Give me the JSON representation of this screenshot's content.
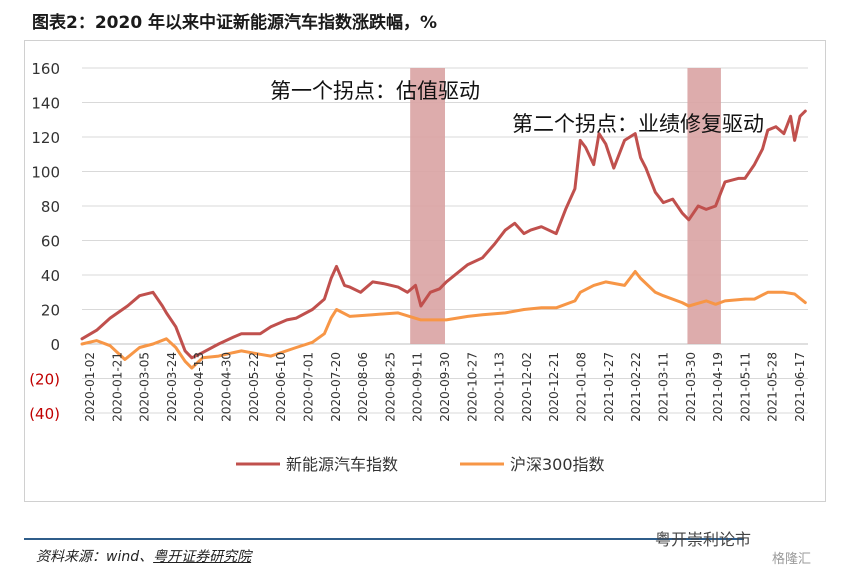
{
  "title": "图表2：2020 年以来中证新能源汽车指数涨跌幅，%",
  "source": {
    "prefix": "资料来源：wind、",
    "org": "粤开证券研究院"
  },
  "watermark": "粤开崇利论市",
  "watermark2": "格隆汇",
  "colors": {
    "nev": "#c0504d",
    "hs300": "#f79646",
    "highlight": "#d9a3a3",
    "grid": "#d9d9d9",
    "negative_tick": "#c00000"
  },
  "chart_data": {
    "type": "line",
    "title": "",
    "xlabel": "",
    "ylabel": "",
    "ylim": [
      -40,
      160
    ],
    "yticks": [
      {
        "value": 160,
        "label": "160"
      },
      {
        "value": 140,
        "label": "140"
      },
      {
        "value": 120,
        "label": "120"
      },
      {
        "value": 100,
        "label": "100"
      },
      {
        "value": 80,
        "label": "80"
      },
      {
        "value": 60,
        "label": "60"
      },
      {
        "value": 40,
        "label": "40"
      },
      {
        "value": 20,
        "label": "20"
      },
      {
        "value": 0,
        "label": "0"
      },
      {
        "value": -20,
        "label": "(20)"
      },
      {
        "value": -40,
        "label": "(40)"
      }
    ],
    "x_tick_labels": [
      "2020-01-02",
      "2020-01-21",
      "2020-03-05",
      "2020-03-24",
      "2020-04-13",
      "2020-04-30",
      "2020-05-22",
      "2020-06-10",
      "2020-07-01",
      "2020-07-20",
      "2020-08-06",
      "2020-08-25",
      "2020-09-11",
      "2020-09-30",
      "2020-10-27",
      "2020-11-13",
      "2020-12-02",
      "2020-12-21",
      "2021-01-08",
      "2021-01-27",
      "2021-02-22",
      "2021-03-11",
      "2021-03-30",
      "2021-04-19",
      "2021-05-11",
      "2021-05-28",
      "2021-06-17"
    ],
    "grid": true,
    "legend_position": "bottom",
    "annotations": [
      {
        "text": "第一个拐点：估值驱动",
        "x_from": "2020-09-03",
        "x_to": "2020-09-29"
      },
      {
        "text": "第二个拐点：业绩修复驱动",
        "x_from": "2021-03-29",
        "x_to": "2021-04-23"
      }
    ],
    "series": [
      {
        "name": "新能源汽车指数",
        "x": [
          "2020-01-02",
          "2020-01-13",
          "2020-01-23",
          "2020-02-05",
          "2020-02-14",
          "2020-02-24",
          "2020-03-02",
          "2020-03-05",
          "2020-03-12",
          "2020-03-19",
          "2020-03-24",
          "2020-04-01",
          "2020-04-13",
          "2020-04-24",
          "2020-04-30",
          "2020-05-14",
          "2020-05-22",
          "2020-06-03",
          "2020-06-10",
          "2020-06-22",
          "2020-07-01",
          "2020-07-06",
          "2020-07-10",
          "2020-07-16",
          "2020-07-20",
          "2020-07-28",
          "2020-08-06",
          "2020-08-14",
          "2020-08-25",
          "2020-09-01",
          "2020-09-07",
          "2020-09-11",
          "2020-09-18",
          "2020-09-25",
          "2020-09-30",
          "2020-10-16",
          "2020-10-27",
          "2020-11-05",
          "2020-11-13",
          "2020-11-20",
          "2020-11-27",
          "2020-12-02",
          "2020-12-10",
          "2020-12-21",
          "2020-12-28",
          "2021-01-04",
          "2021-01-08",
          "2021-01-12",
          "2021-01-18",
          "2021-01-22",
          "2021-01-27",
          "2021-02-02",
          "2021-02-10",
          "2021-02-18",
          "2021-02-22",
          "2021-02-26",
          "2021-03-05",
          "2021-03-11",
          "2021-03-18",
          "2021-03-25",
          "2021-03-30",
          "2021-04-06",
          "2021-04-12",
          "2021-04-19",
          "2021-04-26",
          "2021-05-06",
          "2021-05-11",
          "2021-05-18",
          "2021-05-24",
          "2021-05-28",
          "2021-06-03",
          "2021-06-09",
          "2021-06-14",
          "2021-06-17",
          "2021-06-21",
          "2021-06-25"
        ],
        "values": [
          3,
          8,
          15,
          22,
          28,
          30,
          22,
          18,
          10,
          -4,
          -8,
          -5,
          0,
          4,
          6,
          6,
          10,
          14,
          15,
          20,
          26,
          38,
          45,
          34,
          33,
          30,
          36,
          35,
          33,
          30,
          34,
          22,
          30,
          32,
          36,
          46,
          50,
          58,
          66,
          70,
          64,
          66,
          68,
          64,
          78,
          90,
          118,
          114,
          104,
          122,
          116,
          102,
          118,
          122,
          108,
          102,
          88,
          82,
          84,
          76,
          72,
          80,
          78,
          80,
          94,
          96,
          96,
          104,
          113,
          124,
          126,
          122,
          132,
          118,
          132,
          135
        ]
      },
      {
        "name": "沪深300指数",
        "x": [
          "2020-01-02",
          "2020-01-13",
          "2020-01-23",
          "2020-02-03",
          "2020-02-14",
          "2020-02-24",
          "2020-03-05",
          "2020-03-12",
          "2020-03-19",
          "2020-03-24",
          "2020-04-01",
          "2020-04-13",
          "2020-04-24",
          "2020-04-30",
          "2020-05-14",
          "2020-05-22",
          "2020-06-10",
          "2020-06-22",
          "2020-07-01",
          "2020-07-06",
          "2020-07-10",
          "2020-07-20",
          "2020-08-06",
          "2020-08-25",
          "2020-09-11",
          "2020-09-30",
          "2020-10-16",
          "2020-10-27",
          "2020-11-13",
          "2020-11-27",
          "2020-12-10",
          "2020-12-21",
          "2021-01-04",
          "2021-01-08",
          "2021-01-18",
          "2021-01-27",
          "2021-02-10",
          "2021-02-18",
          "2021-02-22",
          "2021-03-05",
          "2021-03-11",
          "2021-03-25",
          "2021-03-30",
          "2021-04-12",
          "2021-04-19",
          "2021-04-26",
          "2021-05-11",
          "2021-05-18",
          "2021-05-28",
          "2021-06-09",
          "2021-06-17",
          "2021-06-25"
        ],
        "values": [
          0,
          2,
          -1,
          -9,
          -2,
          0,
          3,
          -2,
          -10,
          -14,
          -8,
          -7,
          -5,
          -4,
          -6,
          -7,
          -2,
          1,
          6,
          15,
          20,
          16,
          17,
          18,
          14,
          14,
          16,
          17,
          18,
          20,
          21,
          21,
          25,
          30,
          34,
          36,
          34,
          42,
          38,
          30,
          28,
          24,
          22,
          25,
          23,
          25,
          26,
          26,
          30,
          30,
          29,
          24
        ]
      }
    ]
  }
}
